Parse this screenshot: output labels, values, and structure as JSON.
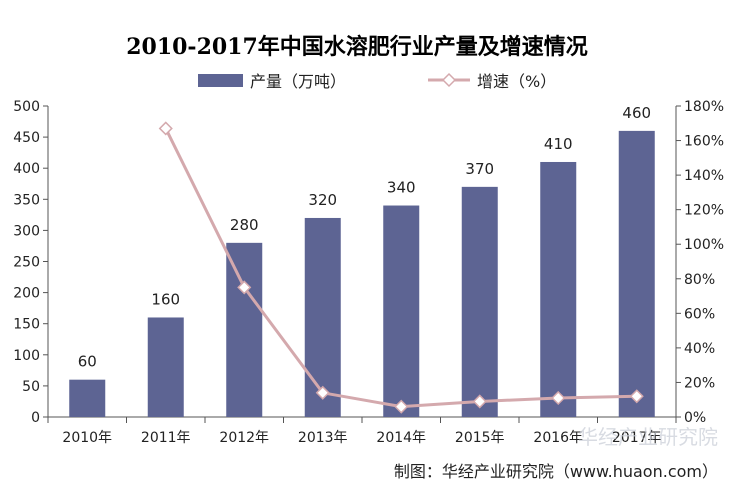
{
  "chart_data": {
    "type": "bar",
    "title": "2010-2017年中国水溶肥行业产量及增速情况",
    "categories": [
      "2010年",
      "2011年",
      "2012年",
      "2013年",
      "2014年",
      "2015年",
      "2016年",
      "2017年"
    ],
    "series": [
      {
        "name": "产量（万吨）",
        "type": "bar",
        "axis": "left",
        "color": "#5d6493",
        "values": [
          60,
          160,
          280,
          320,
          340,
          370,
          410,
          460
        ]
      },
      {
        "name": "增速（%）",
        "type": "line",
        "axis": "right",
        "color": "#d4a9ad",
        "values": [
          null,
          167,
          75,
          14,
          6,
          9,
          11,
          12
        ]
      }
    ],
    "y_left": {
      "min": 0,
      "max": 500,
      "step": 50,
      "ticks": [
        "0",
        "50",
        "100",
        "150",
        "200",
        "250",
        "300",
        "350",
        "400",
        "450",
        "500"
      ]
    },
    "y_right": {
      "min": 0,
      "max": 180,
      "step": 20,
      "ticks": [
        "0%",
        "20%",
        "40%",
        "60%",
        "80%",
        "100%",
        "120%",
        "140%",
        "160%",
        "180%"
      ]
    },
    "data_labels": [
      "60",
      "160",
      "280",
      "320",
      "340",
      "370",
      "410",
      "460"
    ],
    "legend_position": "top-center",
    "grid": false
  },
  "credit": "制图：华经产业研究院（www.huaon.com）",
  "watermark": "华经产业研究院"
}
